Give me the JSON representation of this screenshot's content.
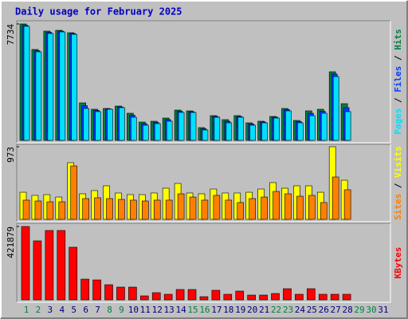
{
  "chart_data": [
    {
      "type": "bar",
      "title": "Daily usage for February 2025",
      "ylim": [
        0,
        7734
      ],
      "yticks": [
        7734
      ],
      "series": [
        {
          "name": "Hits",
          "color": "#008040",
          "values": [
            7734,
            6039,
            7257,
            7310,
            7151,
            2490,
            2066,
            2119,
            2278,
            1801,
            1218,
            1271,
            1483,
            2013,
            1960,
            848,
            1642,
            1377,
            1642,
            1165,
            1271,
            1589,
            2119,
            1324,
            1960,
            2066,
            4556,
            2437,
            null,
            null,
            null
          ]
        },
        {
          "name": "Files",
          "color": "#0040ff",
          "values": [
            7650,
            5960,
            7180,
            7260,
            7100,
            2300,
            1990,
            2090,
            2220,
            1670,
            1110,
            1190,
            1380,
            1930,
            1900,
            770,
            1590,
            1270,
            1590,
            1090,
            1220,
            1540,
            2040,
            1250,
            1800,
            1930,
            4400,
            2170,
            null,
            null,
            null
          ]
        },
        {
          "name": "Pages",
          "color": "#00e0ff",
          "values": [
            7575,
            5880,
            7098,
            7204,
            7045,
            2119,
            1907,
            2066,
            2172,
            1536,
            1006,
            1112,
            1271,
            1854,
            1854,
            689,
            1536,
            1165,
            1536,
            1006,
            1165,
            1483,
            1960,
            1165,
            1642,
            1801,
            4238,
            1907,
            null,
            null,
            null
          ]
        }
      ]
    },
    {
      "type": "bar",
      "ylim": [
        0,
        973
      ],
      "yticks": [
        973
      ],
      "series": [
        {
          "name": "Visits",
          "color": "#ffff00",
          "values": [
            363,
            321,
            331,
            299,
            759,
            342,
            385,
            449,
            353,
            331,
            331,
            353,
            417,
            481,
            353,
            342,
            406,
            353,
            353,
            363,
            406,
            492,
            417,
            449,
            449,
            363,
            973,
            524,
            null,
            null,
            null
          ]
        },
        {
          "name": "Sites",
          "color": "#ff8000",
          "values": [
            257,
            246,
            235,
            235,
            716,
            278,
            289,
            278,
            267,
            257,
            246,
            257,
            257,
            342,
            299,
            257,
            321,
            257,
            225,
            278,
            299,
            374,
            342,
            310,
            321,
            225,
            567,
            396,
            null,
            null,
            null
          ]
        }
      ]
    },
    {
      "type": "bar",
      "ylim": [
        0,
        421879
      ],
      "yticks": [
        421879
      ],
      "categories": [
        "1",
        "2",
        "3",
        "4",
        "5",
        "6",
        "7",
        "8",
        "9",
        "10",
        "11",
        "12",
        "13",
        "14",
        "15",
        "16",
        "17",
        "18",
        "19",
        "20",
        "21",
        "22",
        "23",
        "24",
        "25",
        "26",
        "27",
        "28",
        "29",
        "30",
        "31"
      ],
      "category_colors": [
        "#008040",
        "#008040",
        "#000080",
        "#000080",
        "#000080",
        "#000080",
        "#000080",
        "#008040",
        "#008040",
        "#000080",
        "#000080",
        "#000080",
        "#000080",
        "#000080",
        "#008040",
        "#008040",
        "#000080",
        "#000080",
        "#000080",
        "#000080",
        "#000080",
        "#008040",
        "#008040",
        "#000080",
        "#000080",
        "#000080",
        "#000080",
        "#000080",
        "#008040",
        "#008040",
        "#000080"
      ],
      "series": [
        {
          "name": "KBytes",
          "color": "#ff0000",
          "values": [
            421879,
            339339,
            398950,
            398950,
            302659,
            119227,
            114641,
            87128,
            73370,
            73370,
            22928,
            41271,
            32100,
            59613,
            59613,
            18343,
            55028,
            32100,
            50442,
            27514,
            27514,
            36685,
            64199,
            32100,
            64199,
            32100,
            32100,
            32100,
            null,
            null,
            null
          ]
        }
      ]
    }
  ]
}
